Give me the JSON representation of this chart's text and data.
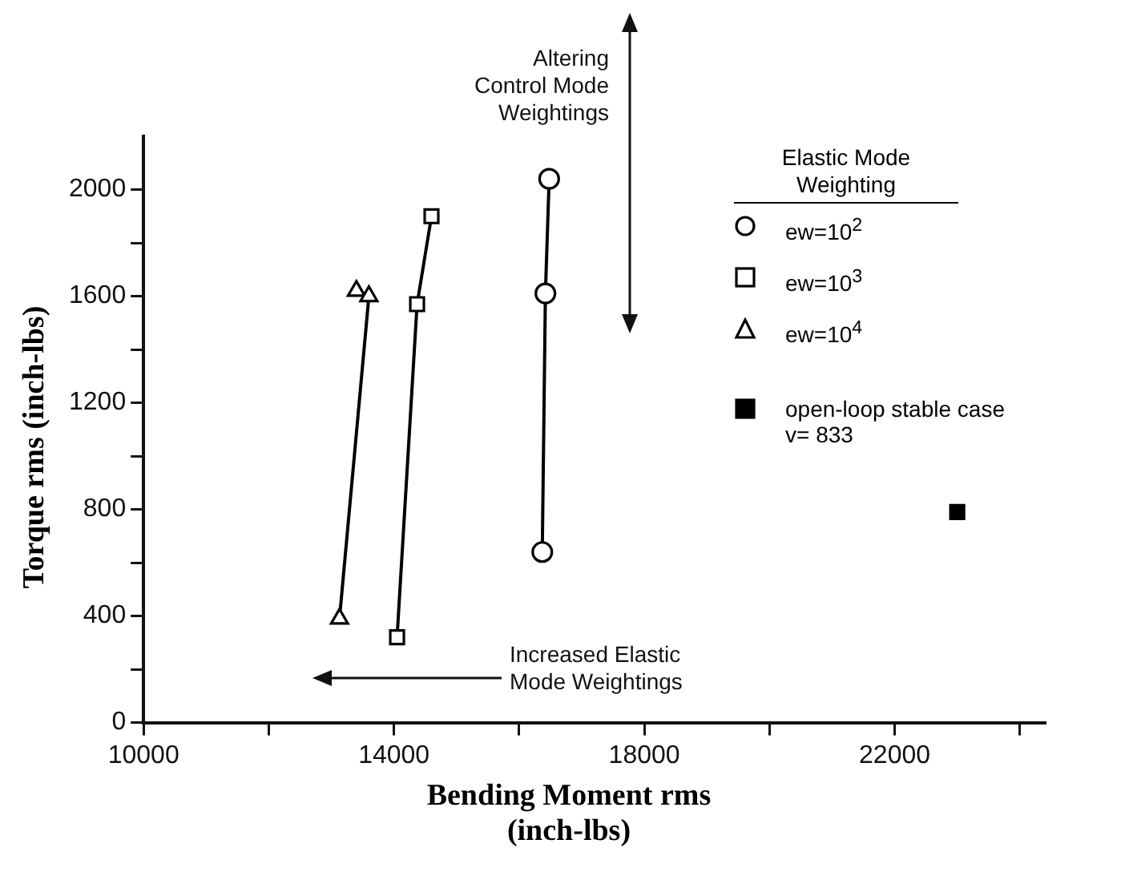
{
  "chart_data": {
    "type": "line",
    "xlabel": "Bending Moment rms (inch-lbs)",
    "ylabel": "Torque rms (inch-lbs)",
    "legend_title": "Elastic Mode Weighting",
    "annotations": [
      "Altering Control Mode Weightings",
      "Increased Elastic Mode Weightings"
    ],
    "series": [
      {
        "name": "ew=10$^{2}$",
        "marker": "circle",
        "color": "#000000",
        "x": [
          16480,
          16420,
          16370
        ],
        "values": [
          2040,
          1610,
          640
        ]
      },
      {
        "name": "ew=10$^{3}$",
        "marker": "square",
        "color": "#000000",
        "x": [
          14600,
          14370,
          14050
        ],
        "values": [
          1900,
          1570,
          320
        ]
      },
      {
        "name": "ew=10$^{4}$",
        "marker": "triangle",
        "color": "#000000",
        "x": [
          13400,
          13600,
          13130
        ],
        "values": [
          1620,
          1600,
          390
        ]
      },
      {
        "name": "open-loop stable case v= 833",
        "type": "scatter",
        "marker": "square",
        "color": "#000000",
        "x": [
          23000
        ],
        "values": [
          790
        ]
      }
    ],
    "xlim": [
      10000,
      24400
    ],
    "xticks": [
      10000,
      {
        "value": 12000,
        "label": null
      },
      14000,
      {
        "value": 16000,
        "label": null
      },
      18000,
      {
        "value": 20000,
        "label": null
      },
      22000,
      {
        "value": 24000,
        "label": null
      }
    ],
    "ylim": [
      0,
      2200
    ],
    "yticks": [
      0,
      {
        "value": 200,
        "label": null
      },
      400,
      {
        "value": 600,
        "label": null
      },
      800,
      {
        "value": 1000,
        "label": null
      },
      1200,
      {
        "value": 1400,
        "label": null
      },
      1600,
      {
        "value": 1800,
        "label": null
      },
      2000
    ],
    "grid": false,
    "legend": "top right",
    "line_style": "solid"
  }
}
